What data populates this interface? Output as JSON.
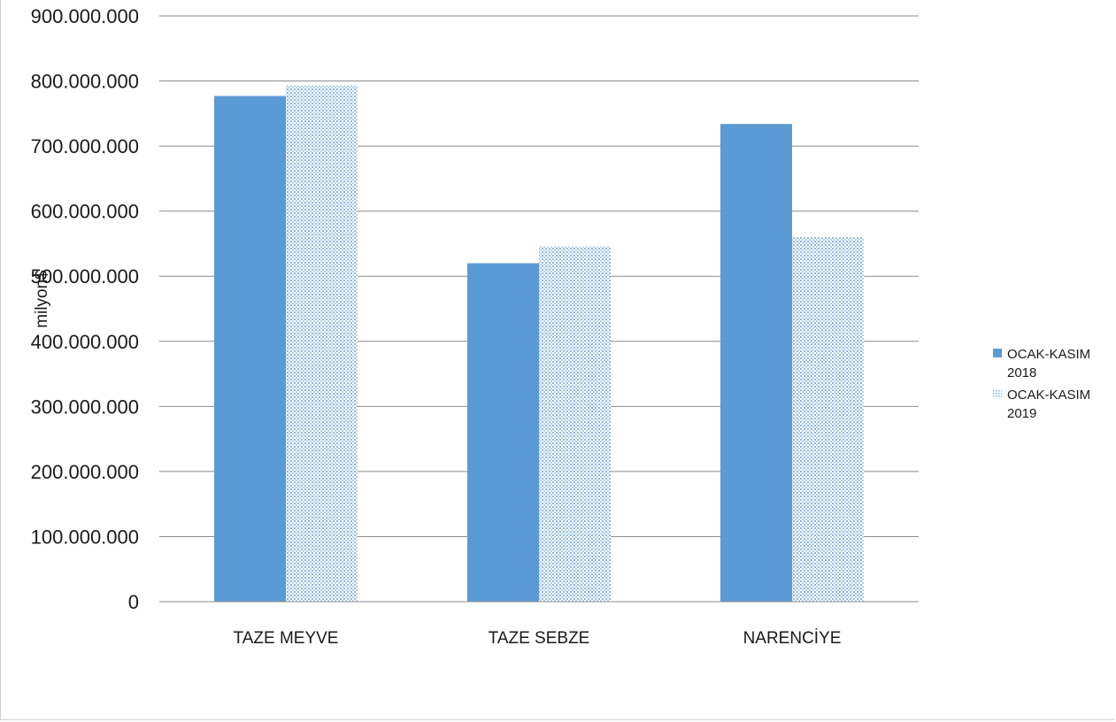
{
  "chart_data": {
    "type": "bar",
    "title": "",
    "xlabel": "",
    "ylabel": "milyon$",
    "categories": [
      "TAZE MEYVE",
      "TAZE SEBZE",
      "NARENCİYE"
    ],
    "series": [
      {
        "name_lines": [
          "OCAK-KASIM",
          "2018"
        ],
        "name": "OCAK-KASIM 2018",
        "values": [
          777000000,
          520000000,
          734000000
        ],
        "color": "#5b9bd5",
        "fill": "solid"
      },
      {
        "name_lines": [
          "OCAK-KASIM",
          "2019"
        ],
        "name": "OCAK-KASIM 2019",
        "values": [
          793000000,
          546000000,
          560000000
        ],
        "color": "#5b9bd5",
        "fill": "dotted"
      }
    ],
    "ylim": [
      0,
      900000000
    ],
    "yticks": [
      {
        "value": 0,
        "label": "0"
      },
      {
        "value": 100000000,
        "label": "100.000.000"
      },
      {
        "value": 200000000,
        "label": "200.000.000"
      },
      {
        "value": 300000000,
        "label": "300.000.000"
      },
      {
        "value": 400000000,
        "label": "400.000.000"
      },
      {
        "value": 500000000,
        "label": "500.000.000"
      },
      {
        "value": 600000000,
        "label": "600.000.000"
      },
      {
        "value": 700000000,
        "label": "700.000.000"
      },
      {
        "value": 800000000,
        "label": "800.000.000"
      },
      {
        "value": 900000000,
        "label": "900.000.000"
      }
    ],
    "grid": true,
    "legend_position": "right"
  }
}
